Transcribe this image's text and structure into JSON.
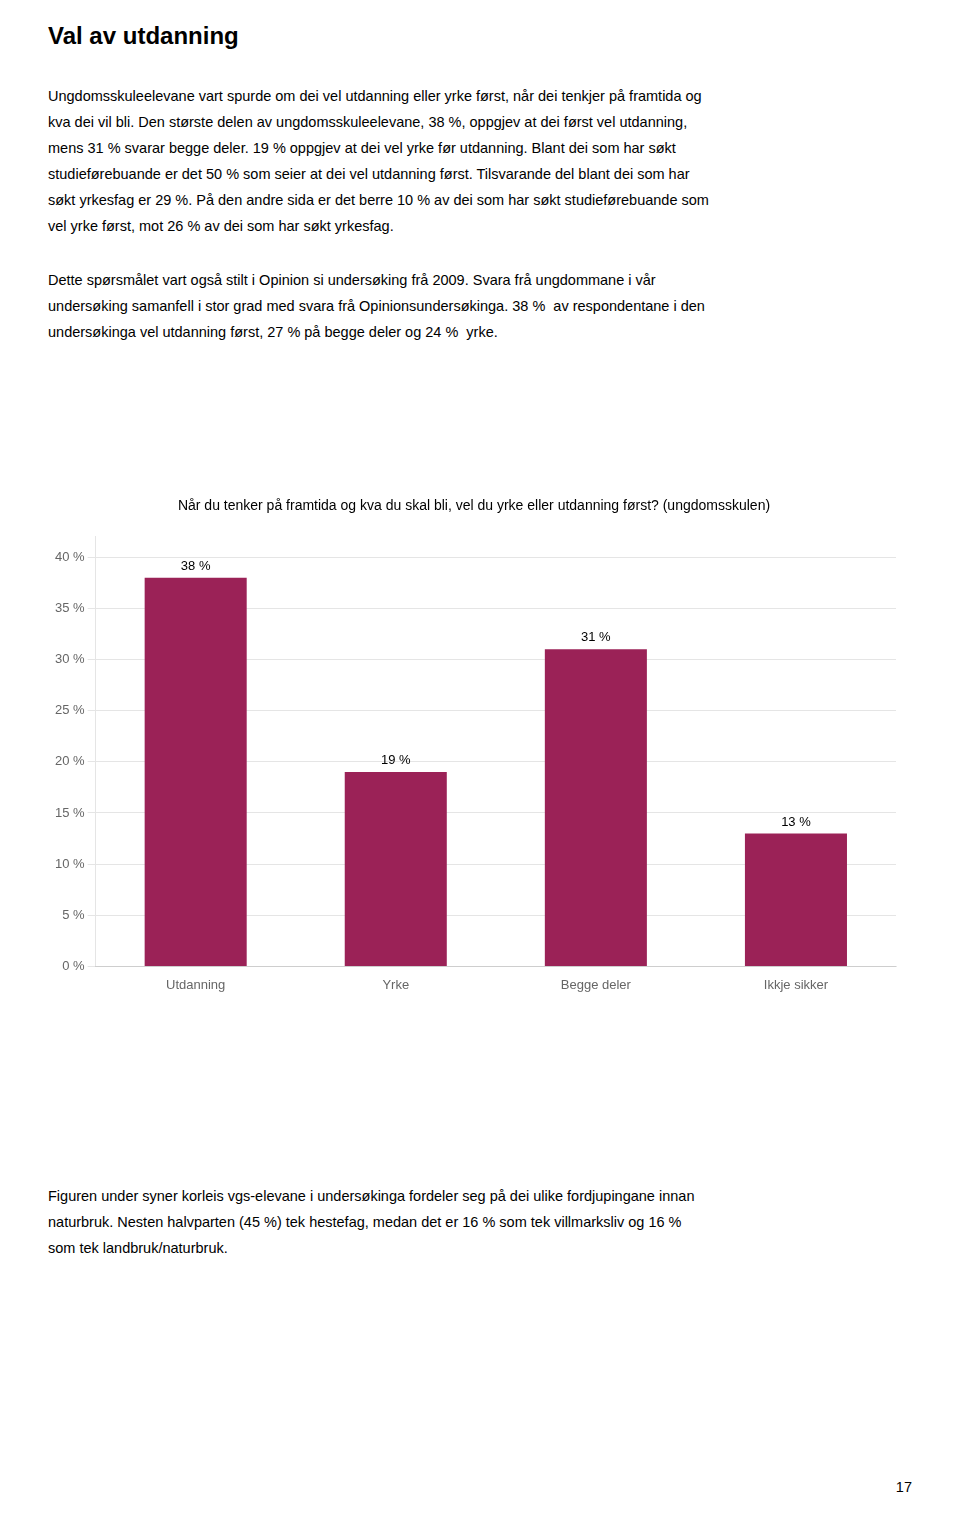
{
  "page_title": "Val av utdanning",
  "body_lines_1": [
    "Ungdomsskuleelevane vart spurde om dei vel utdanning eller yrke først, når dei tenkjer på framtida og",
    "kva dei vil bli. Den største delen av ungdomsskuleelevane, 38 %, oppgjev at dei først vel utdanning,",
    "mens 31 % svarar begge deler. 19 % oppgjev at dei vel yrke før utdanning. Blant dei som har søkt",
    "studieførebuande er det 50 % som seier at dei vel utdanning først. Tilsvarande del blant dei som har",
    "søkt yrkesfag er 29 %. På den andre sida er det berre 10 % av dei som har søkt studieførebuande som",
    "vel yrke først, mot 26 % av dei som har søkt yrkesfag."
  ],
  "body_lines_2": [
    "Dette spørsmålet vart også stilt i Opinion si undersøking frå 2009. Svara frå ungdommane i vår",
    "undersøking samanfell i stor grad med svara frå Opinionsundersøkinga. 38 %  av respondentane i den",
    "undersøkinga vel utdanning først, 27 % på begge deler og 24 %  yrke."
  ],
  "footer_lines": [
    "Figuren under syner korleis vgs-elevane i undersøkinga fordeler seg på dei ulike fordjupingane innan",
    "naturbruk. Nesten halvparten (45 %) tek hestefag, medan det er 16 % som tek villmarksliv og 16 %",
    "som tek landbruk/naturbruk."
  ],
  "page_number": "17",
  "chart_data": {
    "type": "bar",
    "title": "Når du tenker på framtida og kva du skal bli, vel du yrke eller utdanning først? (ungdomsskulen)",
    "categories": [
      "Utdanning",
      "Yrke",
      "Begge deler",
      "Ikkje sikker"
    ],
    "values": [
      38,
      19,
      31,
      13
    ],
    "value_labels": [
      "38 %",
      "19 %",
      "31 %",
      "13 %"
    ],
    "color": "#9B2257",
    "ylim": [
      0,
      42
    ],
    "yticks": [
      {
        "value": 0,
        "label": "0 %"
      },
      {
        "value": 5,
        "label": "5 %"
      },
      {
        "value": 10,
        "label": "10 %"
      },
      {
        "value": 15,
        "label": "15 %"
      },
      {
        "value": 20,
        "label": "20 %"
      },
      {
        "value": 25,
        "label": "25 %"
      },
      {
        "value": 30,
        "label": "30 %"
      },
      {
        "value": 35,
        "label": "35 %"
      },
      {
        "value": 40,
        "label": "40 %"
      }
    ],
    "grid": true,
    "data_labels": true
  }
}
